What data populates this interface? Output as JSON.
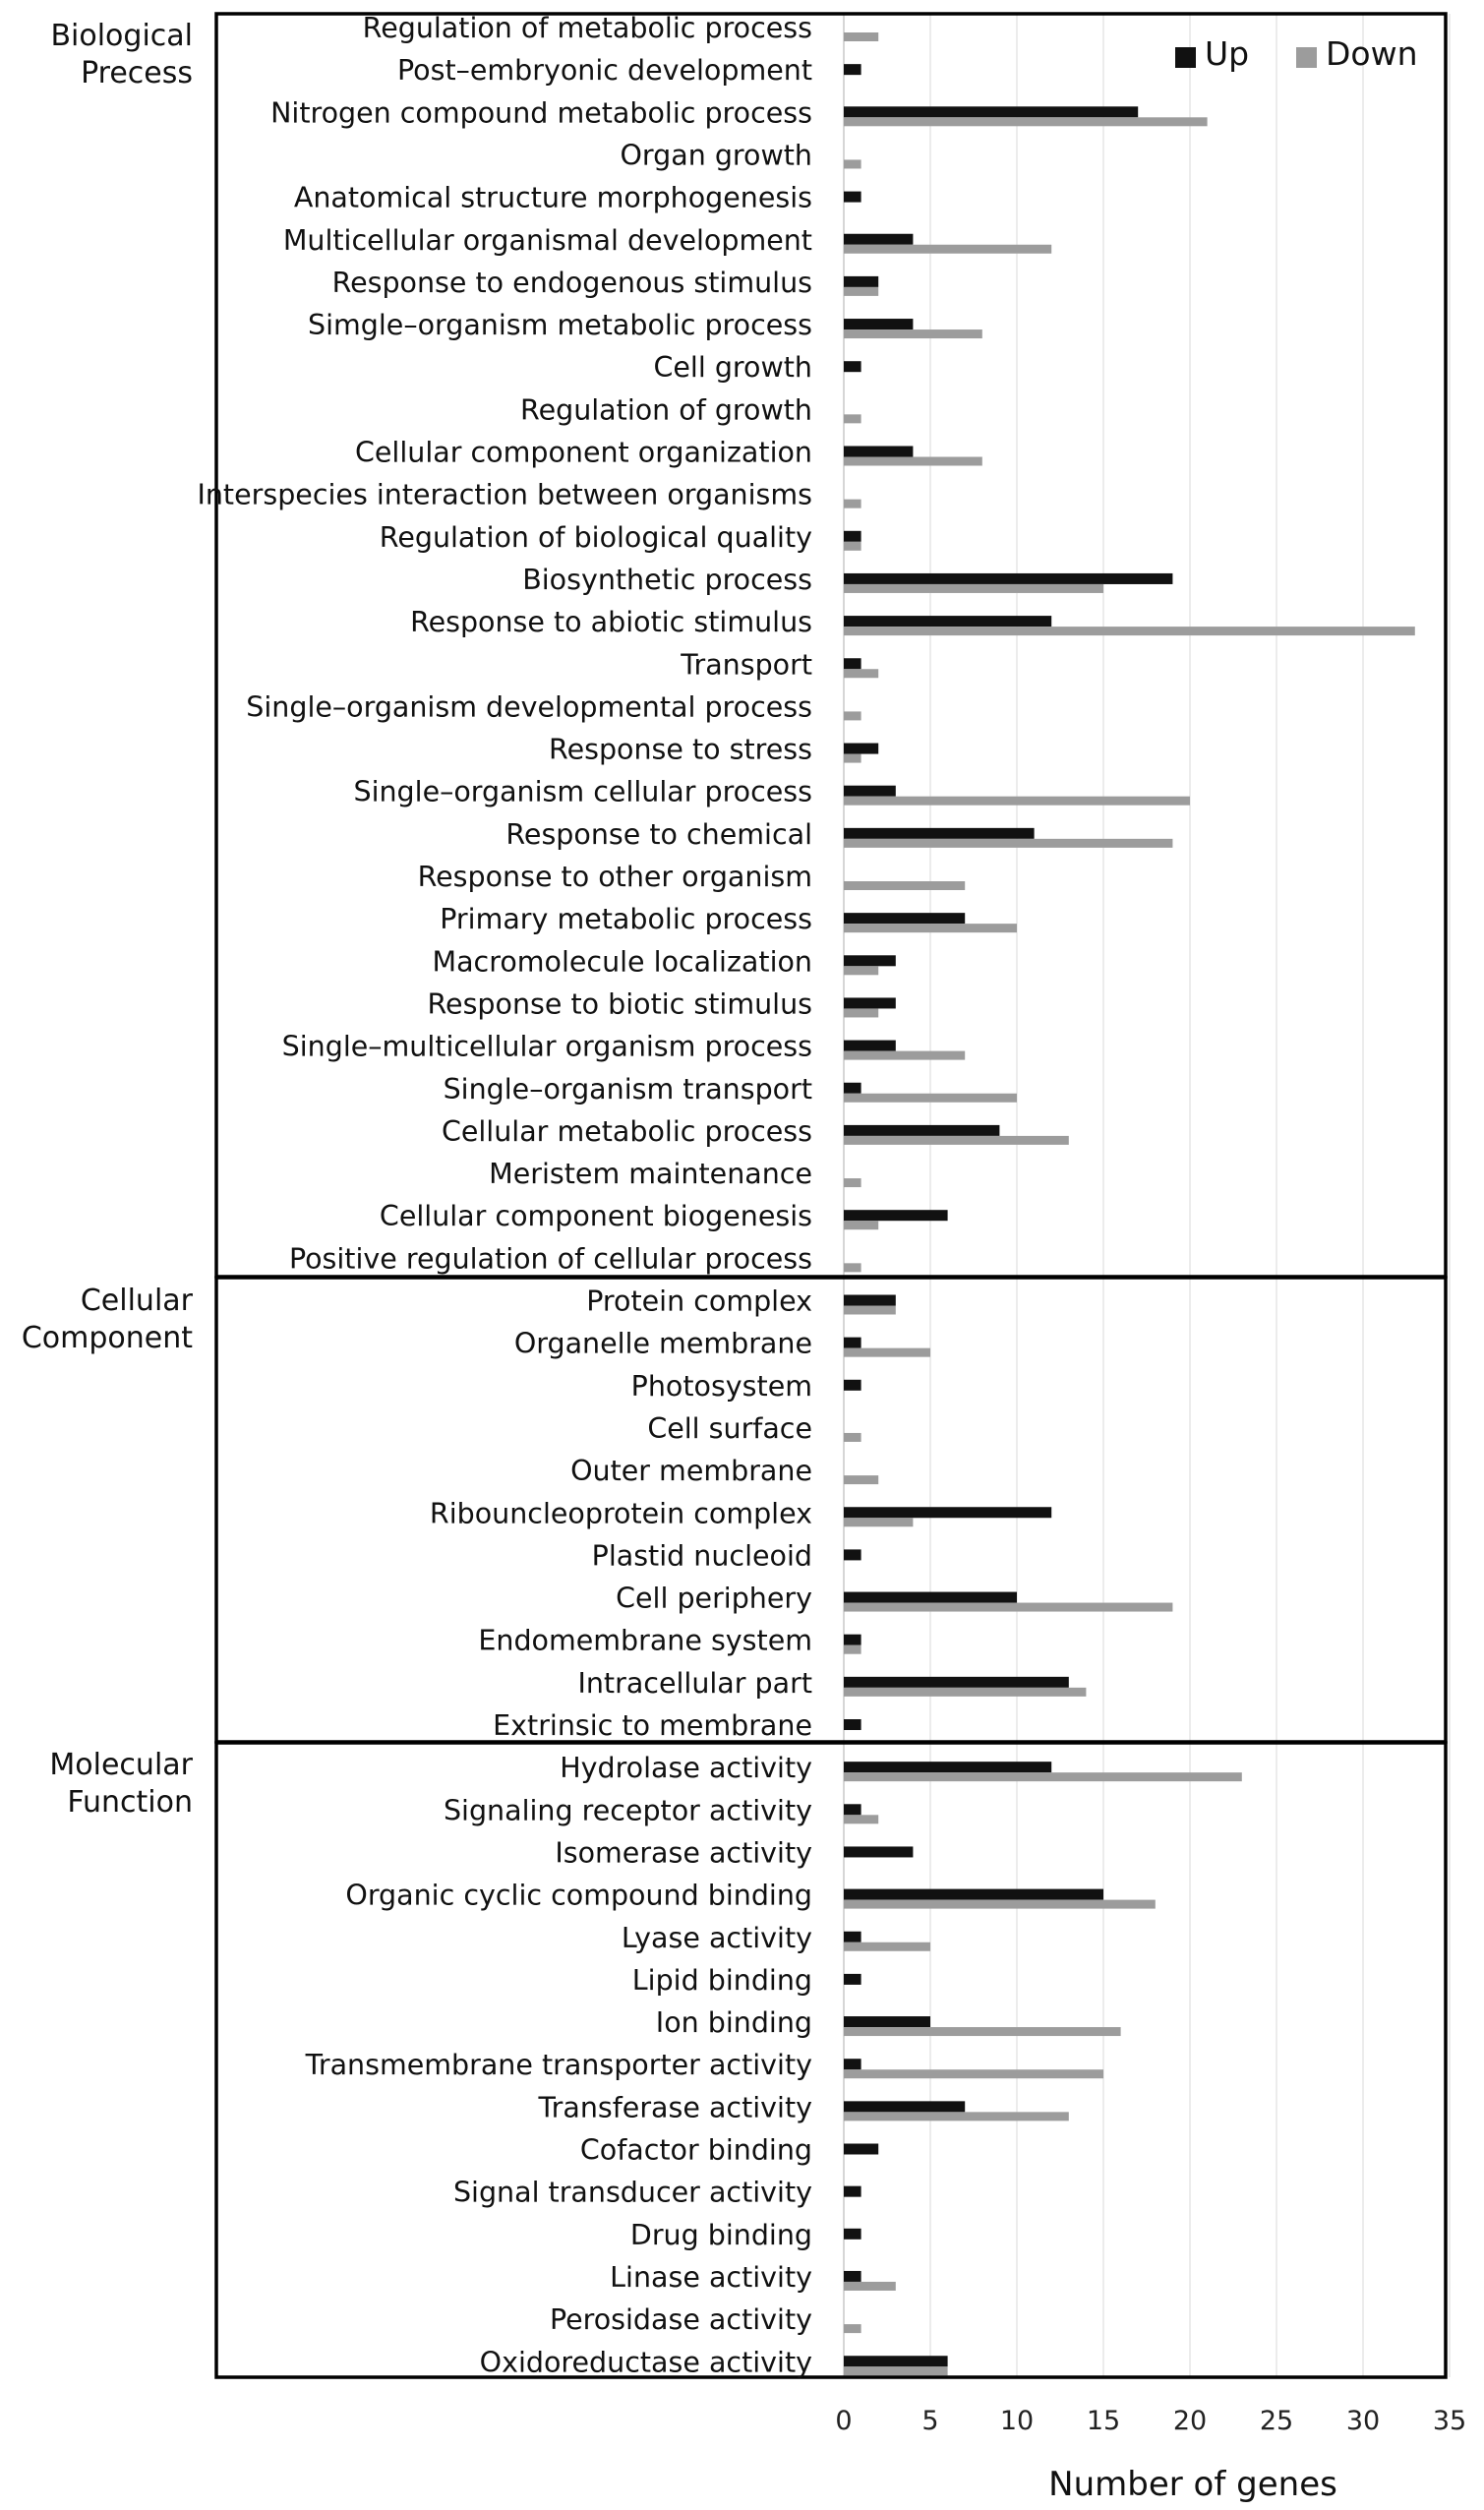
{
  "chart_data": {
    "type": "bar",
    "orientation": "horizontal",
    "xlabel": "Number of genes",
    "xlim": [
      0,
      35
    ],
    "xticks": [
      0,
      5,
      10,
      15,
      20,
      25,
      30,
      35
    ],
    "grid": "vertical",
    "legend": {
      "placement": "top-right",
      "entries": [
        "Up",
        "Down"
      ]
    },
    "colors": {
      "up": "#111111",
      "down": "#9c9c9c"
    },
    "series_names": [
      "Up",
      "Down"
    ],
    "groups": [
      {
        "name": "Biological\nPrecess",
        "categories": [
          "Regulation of metabolic process",
          "Post–embryonic development",
          "Nitrogen compound metabolic process",
          "Organ growth",
          "Anatomical structure morphogenesis",
          "Multicellular organismal development",
          "Response to endogenous stimulus",
          "Simgle–organism metabolic process",
          "Cell growth",
          "Regulation of growth",
          "Cellular component organization",
          "Interspecies interaction between organisms",
          "Regulation of biological quality",
          "Biosynthetic process",
          "Response to abiotic stimulus",
          "Transport",
          "Single–organism developmental process",
          "Response to stress",
          "Single–organism cellular process",
          "Response to chemical",
          "Response to other organism",
          "Primary metabolic process",
          "Macromolecule localization",
          "Response to biotic stimulus",
          "Single–multicellular organism process",
          "Single–organism transport",
          "Cellular metabolic process",
          "Meristem maintenance",
          "Cellular component biogenesis",
          "Positive regulation of cellular process"
        ],
        "up": [
          0,
          1,
          17,
          0,
          1,
          4,
          2,
          4,
          1,
          0,
          4,
          0,
          1,
          19,
          12,
          1,
          0,
          2,
          3,
          11,
          0,
          7,
          3,
          3,
          3,
          1,
          9,
          0,
          6,
          0
        ],
        "down": [
          2,
          0,
          21,
          1,
          0,
          12,
          2,
          8,
          0,
          1,
          8,
          1,
          1,
          15,
          33,
          2,
          1,
          1,
          20,
          19,
          7,
          10,
          2,
          2,
          7,
          10,
          13,
          1,
          2,
          1
        ]
      },
      {
        "name": "Cellular\nComponent",
        "categories": [
          "Protein complex",
          "Organelle membrane",
          "Photosystem",
          "Cell surface",
          "Outer membrane",
          "Ribouncleoprotein complex",
          "Plastid nucleoid",
          "Cell periphery",
          "Endomembrane system",
          "Intracellular part",
          "Extrinsic to membrane"
        ],
        "up": [
          3,
          1,
          1,
          0,
          0,
          12,
          1,
          10,
          1,
          13,
          1
        ],
        "down": [
          3,
          5,
          0,
          1,
          2,
          4,
          0,
          19,
          1,
          14,
          0
        ]
      },
      {
        "name": "Molecular\nFunction",
        "categories": [
          "Hydrolase activity",
          "Signaling receptor activity",
          "Isomerase activity",
          "Organic cyclic compound binding",
          "Lyase activity",
          "Lipid binding",
          "Ion binding",
          "Transmembrane transporter activity",
          "Transferase activity",
          "Cofactor binding",
          "Signal transducer activity",
          "Drug binding",
          "Linase activity",
          "Perosidase activity",
          "Oxidoreductase activity"
        ],
        "up": [
          12,
          1,
          4,
          15,
          1,
          1,
          5,
          1,
          7,
          2,
          1,
          1,
          1,
          0,
          6
        ],
        "down": [
          23,
          2,
          0,
          18,
          5,
          0,
          16,
          15,
          13,
          0,
          0,
          0,
          3,
          1,
          6
        ]
      }
    ]
  }
}
